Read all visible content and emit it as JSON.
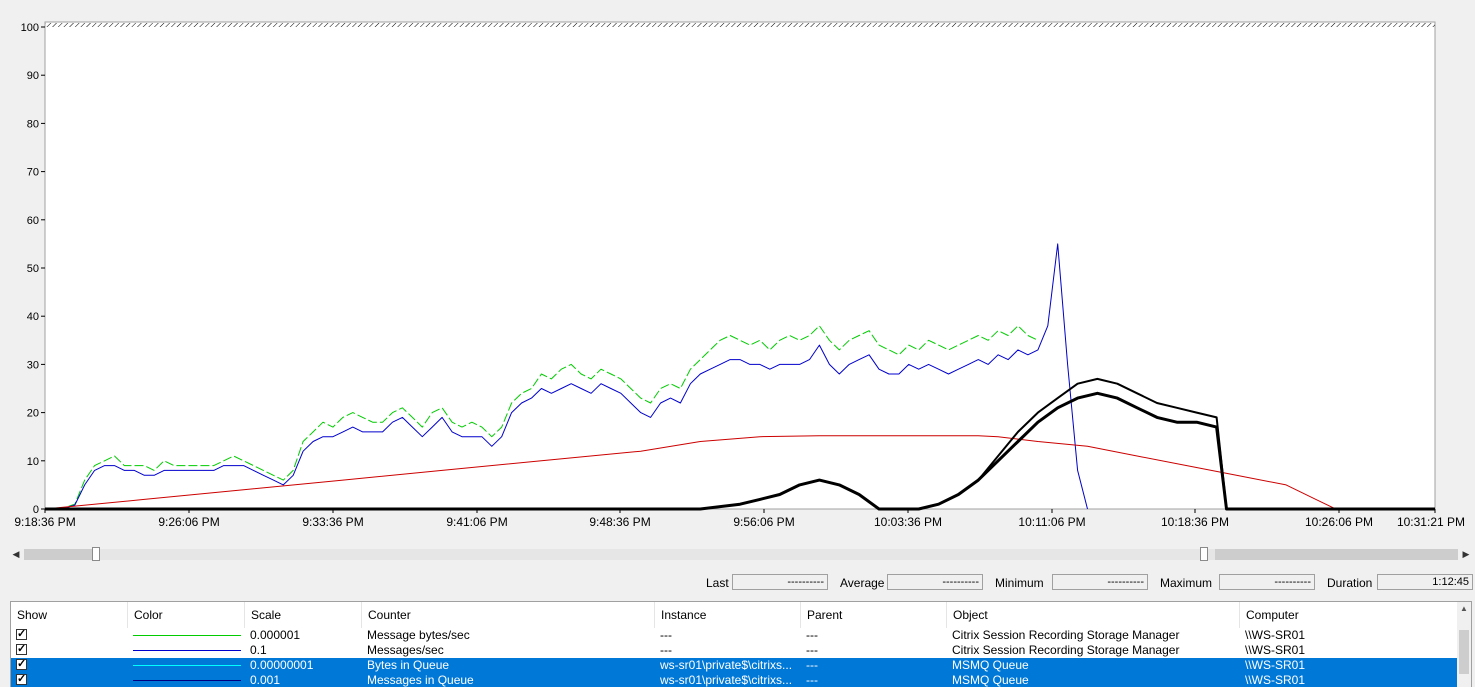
{
  "chart": {
    "y_ticks": [
      "0",
      "10",
      "20",
      "30",
      "40",
      "50",
      "60",
      "70",
      "80",
      "90",
      "100"
    ],
    "x_ticks": [
      "9:18:36 PM",
      "9:26:06 PM",
      "9:33:36 PM",
      "9:41:06 PM",
      "9:48:36 PM",
      "9:56:06 PM",
      "10:03:36 PM",
      "10:11:06 PM",
      "10:18:36 PM",
      "10:26:06 PM",
      "10:31:21 PM"
    ]
  },
  "chart_data": {
    "type": "line",
    "ylim": [
      0,
      100
    ],
    "x_domain_minutes": [
      0,
      72.75
    ],
    "series": [
      {
        "color": "#00cc00",
        "dashed": true,
        "points": [
          [
            0,
            0
          ],
          [
            2,
            0.3
          ],
          [
            3,
            1
          ],
          [
            4,
            6
          ],
          [
            5,
            9
          ],
          [
            6,
            10
          ],
          [
            7,
            11
          ],
          [
            8,
            9
          ],
          [
            9,
            9
          ],
          [
            10,
            9
          ],
          [
            11,
            8
          ],
          [
            12,
            10
          ],
          [
            13,
            9
          ],
          [
            14,
            9
          ],
          [
            15,
            9
          ],
          [
            16,
            9
          ],
          [
            17,
            9
          ],
          [
            18,
            10
          ],
          [
            19,
            11
          ],
          [
            20,
            10
          ],
          [
            21,
            9
          ],
          [
            22,
            8
          ],
          [
            23,
            7
          ],
          [
            24,
            6
          ],
          [
            25,
            8
          ],
          [
            26,
            14
          ],
          [
            27,
            16
          ],
          [
            28,
            18
          ],
          [
            29,
            17
          ],
          [
            30,
            19
          ],
          [
            31,
            20
          ],
          [
            32,
            19
          ],
          [
            33,
            18
          ],
          [
            34,
            18
          ],
          [
            35,
            20
          ],
          [
            36,
            21
          ],
          [
            37,
            19
          ],
          [
            38,
            17
          ],
          [
            39,
            20
          ],
          [
            40,
            21
          ],
          [
            41,
            18
          ],
          [
            42,
            17
          ],
          [
            43,
            18
          ],
          [
            44,
            17
          ],
          [
            45,
            15
          ],
          [
            46,
            17
          ],
          [
            47,
            22
          ],
          [
            48,
            24
          ],
          [
            49,
            25
          ],
          [
            50,
            28
          ],
          [
            51,
            27
          ],
          [
            52,
            29
          ],
          [
            53,
            30
          ],
          [
            54,
            28
          ],
          [
            55,
            27
          ],
          [
            56,
            29
          ],
          [
            57,
            28
          ],
          [
            58,
            27
          ],
          [
            59,
            25
          ],
          [
            60,
            23
          ],
          [
            61,
            22
          ],
          [
            62,
            25
          ],
          [
            63,
            26
          ],
          [
            64,
            25
          ],
          [
            65,
            29
          ],
          [
            66,
            31
          ],
          [
            67,
            33
          ],
          [
            68,
            35
          ],
          [
            69,
            36
          ],
          [
            70,
            35
          ],
          [
            71,
            34
          ],
          [
            72,
            35
          ],
          [
            73,
            33
          ],
          [
            74,
            35
          ],
          [
            75,
            36
          ],
          [
            76,
            35
          ],
          [
            77,
            36
          ],
          [
            78,
            38
          ],
          [
            79,
            35
          ],
          [
            80,
            33
          ],
          [
            81,
            35
          ],
          [
            82,
            36
          ],
          [
            83,
            37
          ],
          [
            84,
            34
          ],
          [
            85,
            33
          ],
          [
            86,
            32
          ],
          [
            87,
            34
          ],
          [
            88,
            33
          ],
          [
            89,
            35
          ],
          [
            90,
            34
          ],
          [
            91,
            33
          ],
          [
            92,
            34
          ],
          [
            93,
            35
          ],
          [
            94,
            36
          ],
          [
            95,
            35
          ],
          [
            96,
            37
          ],
          [
            97,
            36
          ],
          [
            98,
            38
          ],
          [
            99,
            36
          ],
          [
            100,
            35
          ]
        ]
      },
      {
        "color": "#0000cc",
        "points": [
          [
            0,
            0
          ],
          [
            2,
            0.2
          ],
          [
            3,
            0.8
          ],
          [
            4,
            5
          ],
          [
            5,
            8
          ],
          [
            6,
            9
          ],
          [
            7,
            9
          ],
          [
            8,
            8
          ],
          [
            9,
            8
          ],
          [
            10,
            7
          ],
          [
            11,
            7
          ],
          [
            12,
            8
          ],
          [
            13,
            8
          ],
          [
            14,
            8
          ],
          [
            15,
            8
          ],
          [
            16,
            8
          ],
          [
            17,
            8
          ],
          [
            18,
            9
          ],
          [
            19,
            9
          ],
          [
            20,
            9
          ],
          [
            21,
            8
          ],
          [
            22,
            7
          ],
          [
            23,
            6
          ],
          [
            24,
            5
          ],
          [
            25,
            7
          ],
          [
            26,
            12
          ],
          [
            27,
            14
          ],
          [
            28,
            15
          ],
          [
            29,
            15
          ],
          [
            30,
            16
          ],
          [
            31,
            17
          ],
          [
            32,
            16
          ],
          [
            33,
            16
          ],
          [
            34,
            16
          ],
          [
            35,
            18
          ],
          [
            36,
            19
          ],
          [
            37,
            17
          ],
          [
            38,
            15
          ],
          [
            39,
            17
          ],
          [
            40,
            19
          ],
          [
            41,
            16
          ],
          [
            42,
            15
          ],
          [
            43,
            15
          ],
          [
            44,
            15
          ],
          [
            45,
            13
          ],
          [
            46,
            15
          ],
          [
            47,
            20
          ],
          [
            48,
            22
          ],
          [
            49,
            23
          ],
          [
            50,
            25
          ],
          [
            51,
            24
          ],
          [
            52,
            25
          ],
          [
            53,
            26
          ],
          [
            54,
            25
          ],
          [
            55,
            24
          ],
          [
            56,
            26
          ],
          [
            57,
            25
          ],
          [
            58,
            24
          ],
          [
            59,
            22
          ],
          [
            60,
            20
          ],
          [
            61,
            19
          ],
          [
            62,
            22
          ],
          [
            63,
            23
          ],
          [
            64,
            22
          ],
          [
            65,
            26
          ],
          [
            66,
            28
          ],
          [
            67,
            29
          ],
          [
            68,
            30
          ],
          [
            69,
            31
          ],
          [
            70,
            31
          ],
          [
            71,
            30
          ],
          [
            72,
            30
          ],
          [
            73,
            29
          ],
          [
            74,
            30
          ],
          [
            75,
            30
          ],
          [
            76,
            30
          ],
          [
            77,
            31
          ],
          [
            78,
            34
          ],
          [
            79,
            30
          ],
          [
            80,
            28
          ],
          [
            81,
            30
          ],
          [
            82,
            31
          ],
          [
            83,
            32
          ],
          [
            84,
            29
          ],
          [
            85,
            28
          ],
          [
            86,
            28
          ],
          [
            87,
            30
          ],
          [
            88,
            29
          ],
          [
            89,
            30
          ],
          [
            90,
            29
          ],
          [
            91,
            28
          ],
          [
            92,
            29
          ],
          [
            93,
            30
          ],
          [
            94,
            31
          ],
          [
            95,
            30
          ],
          [
            96,
            32
          ],
          [
            97,
            31
          ],
          [
            98,
            33
          ],
          [
            99,
            32
          ],
          [
            100,
            33
          ],
          [
            101,
            38
          ],
          [
            102,
            55
          ],
          [
            103,
            30
          ],
          [
            104,
            8
          ],
          [
            105,
            0
          ]
        ]
      },
      {
        "color": "#cc0000",
        "points": [
          [
            0,
            0
          ],
          [
            10,
            2
          ],
          [
            20,
            4
          ],
          [
            30,
            6
          ],
          [
            40,
            8
          ],
          [
            50,
            10
          ],
          [
            60,
            12
          ],
          [
            66,
            14
          ],
          [
            72,
            15
          ],
          [
            78,
            15.2
          ],
          [
            84,
            15.2
          ],
          [
            90,
            15.2
          ],
          [
            94,
            15.2
          ],
          [
            96,
            15
          ],
          [
            100,
            14
          ],
          [
            105,
            13
          ],
          [
            110,
            11
          ],
          [
            115,
            9
          ],
          [
            120,
            7
          ],
          [
            125,
            5
          ],
          [
            128,
            2
          ],
          [
            130,
            0
          ]
        ]
      },
      {
        "color": "#000000",
        "width": 3,
        "points": [
          [
            0,
            0
          ],
          [
            66,
            0
          ],
          [
            70,
            1
          ],
          [
            72,
            2
          ],
          [
            74,
            3
          ],
          [
            76,
            5
          ],
          [
            78,
            6
          ],
          [
            80,
            5
          ],
          [
            82,
            3
          ],
          [
            84,
            0
          ],
          [
            88,
            0
          ],
          [
            90,
            1
          ],
          [
            92,
            3
          ],
          [
            94,
            6
          ],
          [
            96,
            10
          ],
          [
            98,
            14
          ],
          [
            100,
            18
          ],
          [
            102,
            21
          ],
          [
            104,
            23
          ],
          [
            106,
            24
          ],
          [
            108,
            23
          ],
          [
            110,
            21
          ],
          [
            112,
            19
          ],
          [
            114,
            18
          ],
          [
            116,
            18
          ],
          [
            118,
            17
          ],
          [
            119,
            0
          ],
          [
            140,
            0
          ]
        ]
      },
      {
        "color": "#000000",
        "width": 2,
        "points": [
          [
            66,
            0
          ],
          [
            70,
            1
          ],
          [
            72,
            2
          ],
          [
            74,
            3
          ],
          [
            76,
            5
          ],
          [
            78,
            6
          ],
          [
            80,
            5
          ],
          [
            82,
            3
          ],
          [
            84,
            0
          ],
          [
            88,
            0
          ],
          [
            90,
            1
          ],
          [
            92,
            3
          ],
          [
            94,
            6
          ],
          [
            96,
            11
          ],
          [
            98,
            16
          ],
          [
            100,
            20
          ],
          [
            102,
            23
          ],
          [
            104,
            26
          ],
          [
            106,
            27
          ],
          [
            108,
            26
          ],
          [
            110,
            24
          ],
          [
            112,
            22
          ],
          [
            114,
            21
          ],
          [
            116,
            20
          ],
          [
            118,
            19
          ],
          [
            119,
            0
          ]
        ]
      }
    ]
  },
  "stats": {
    "last_label": "Last",
    "last_value": "----------",
    "average_label": "Average",
    "average_value": "----------",
    "minimum_label": "Minimum",
    "minimum_value": "----------",
    "maximum_label": "Maximum",
    "maximum_value": "----------",
    "duration_label": "Duration",
    "duration_value": "1:12:45"
  },
  "table": {
    "headers": [
      "Show",
      "Color",
      "Scale",
      "Counter",
      "Instance",
      "Parent",
      "Object",
      "Computer"
    ],
    "rows": [
      {
        "show": "✓",
        "color": "#00cc00",
        "scale": "0.000001",
        "counter": "Message bytes/sec",
        "instance": "---",
        "parent": "---",
        "object": "Citrix Session Recording Storage Manager",
        "computer": "\\\\WS-SR01",
        "selected": false
      },
      {
        "show": "✓",
        "color": "#0000cc",
        "scale": "0.1",
        "counter": "Messages/sec",
        "instance": "---",
        "parent": "---",
        "object": "Citrix Session Recording Storage Manager",
        "computer": "\\\\WS-SR01",
        "selected": false
      },
      {
        "show": "✓",
        "color": "#00ffff",
        "scale": "0.00000001",
        "counter": "Bytes in Queue",
        "instance": "ws-sr01\\private$\\citrixs...",
        "parent": "---",
        "object": "MSMQ Queue",
        "computer": "\\\\WS-SR01",
        "selected": true
      },
      {
        "show": "✓",
        "color": "#000080",
        "scale": "0.001",
        "counter": "Messages in Queue",
        "instance": "ws-sr01\\private$\\citrixs...",
        "parent": "---",
        "object": "MSMQ Queue",
        "computer": "\\\\WS-SR01",
        "selected": true
      }
    ]
  }
}
